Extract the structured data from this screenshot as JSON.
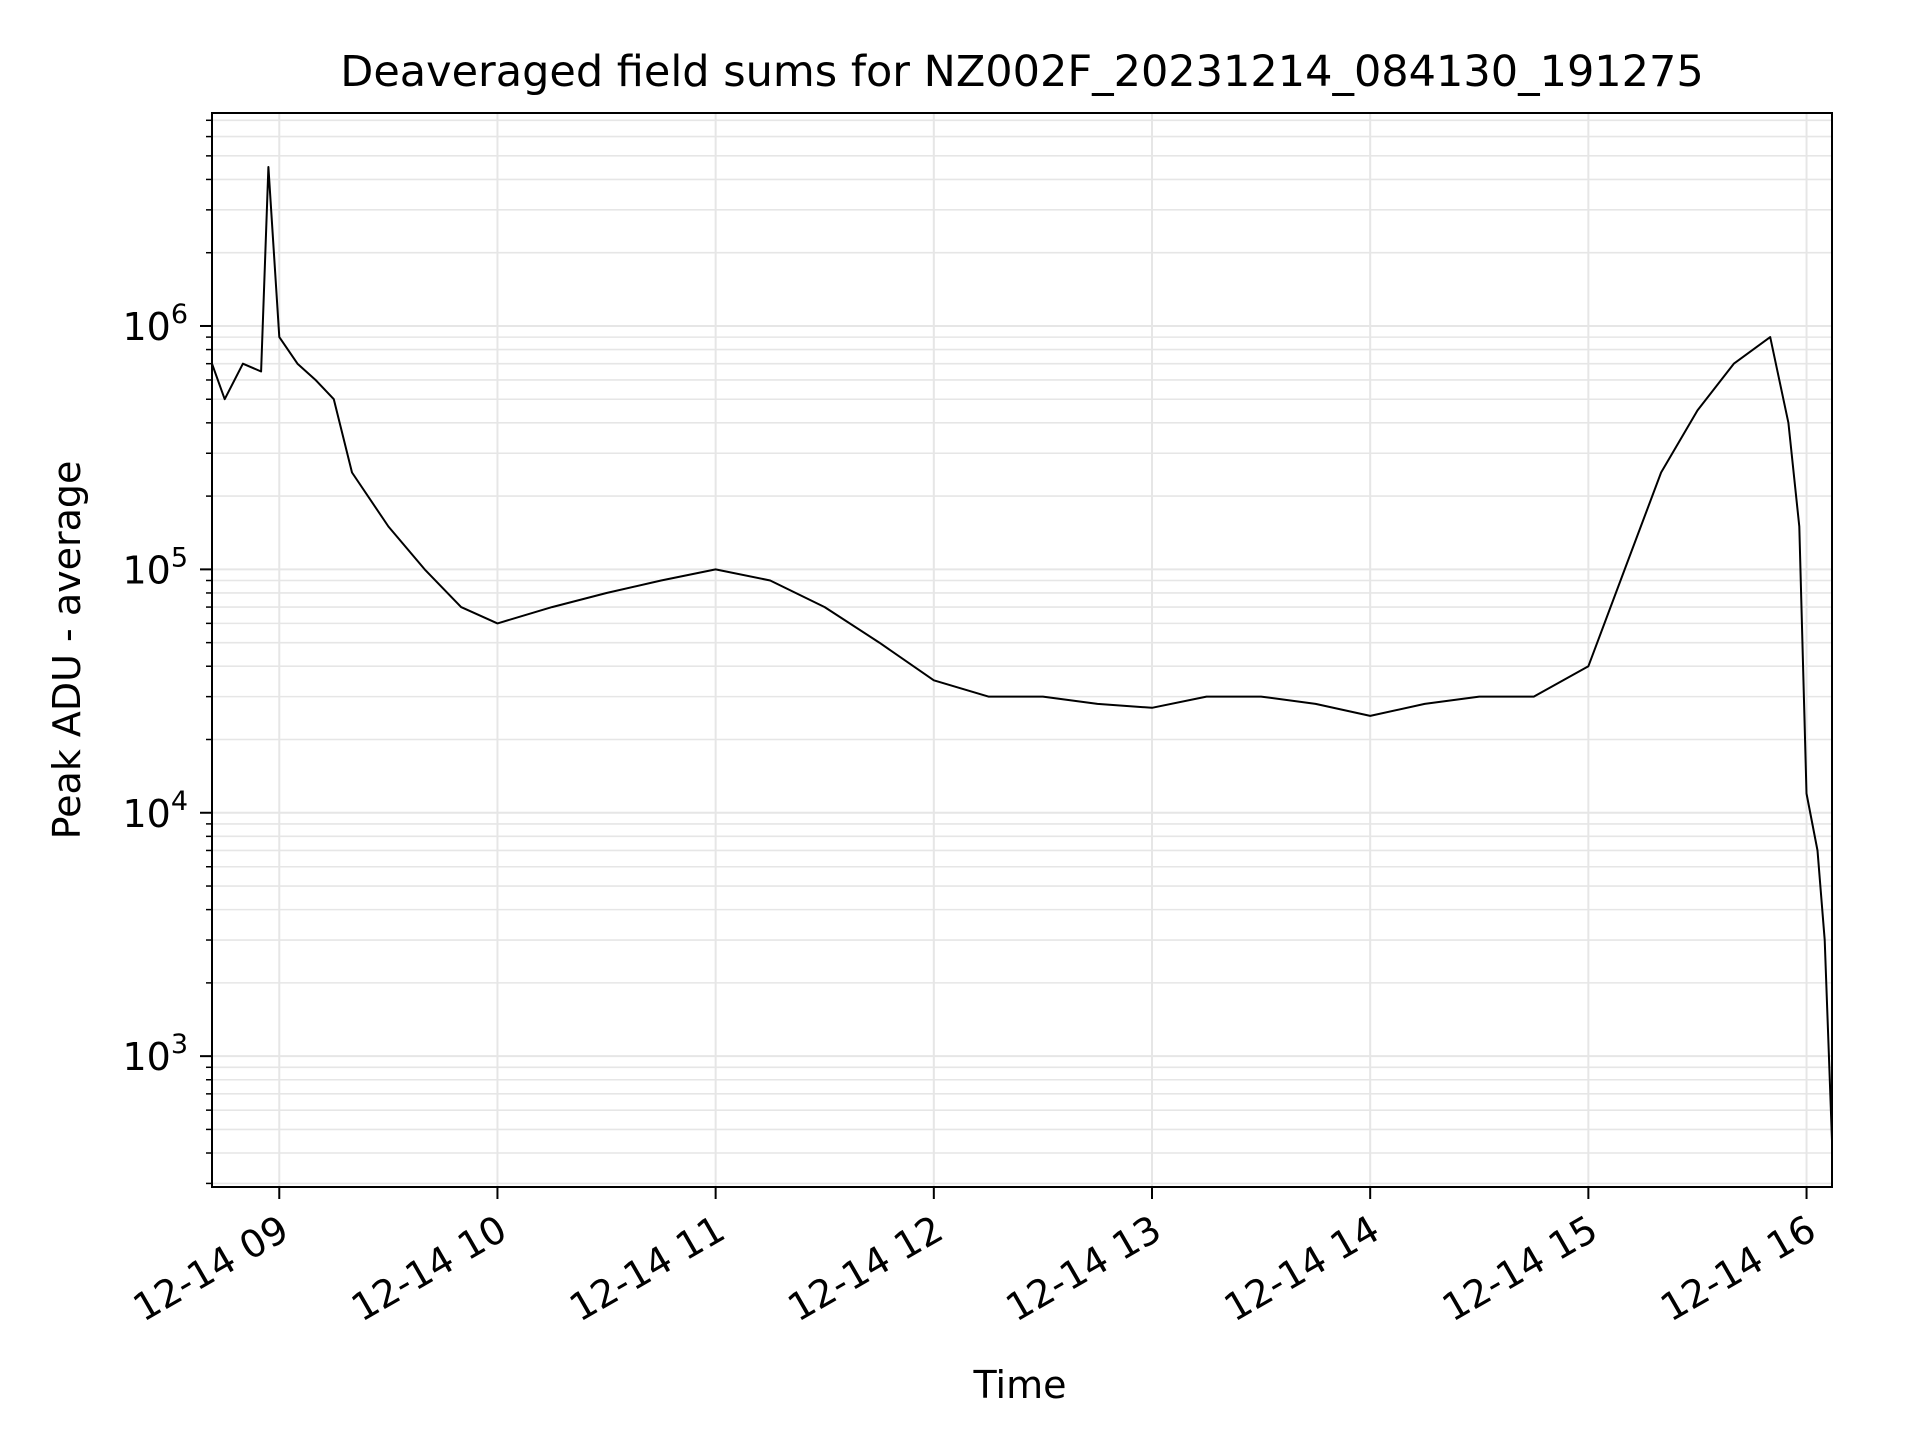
{
  "chart_data": {
    "type": "line",
    "title": "Deaveraged field sums for NZ002F_20231214_084130_191275",
    "xlabel": "Time",
    "ylabel": "Peak ADU - average",
    "yscale": "log",
    "ylim": [
      290,
      7500000
    ],
    "xlim": [
      "2023-12-14 08:41:30",
      "2023-12-14 16:07:00"
    ],
    "grid": true,
    "line_color": "#000000",
    "x_ticks": [
      {
        "time": "2023-12-14 09:00",
        "label": "12-14 09"
      },
      {
        "time": "2023-12-14 10:00",
        "label": "12-14 10"
      },
      {
        "time": "2023-12-14 11:00",
        "label": "12-14 11"
      },
      {
        "time": "2023-12-14 12:00",
        "label": "12-14 12"
      },
      {
        "time": "2023-12-14 13:00",
        "label": "12-14 13"
      },
      {
        "time": "2023-12-14 14:00",
        "label": "12-14 14"
      },
      {
        "time": "2023-12-14 15:00",
        "label": "12-14 15"
      },
      {
        "time": "2023-12-14 16:00",
        "label": "12-14 16"
      }
    ],
    "y_ticks": [
      {
        "value": 1000,
        "base": "10",
        "exp": "3"
      },
      {
        "value": 10000,
        "base": "10",
        "exp": "4"
      },
      {
        "value": 100000,
        "base": "10",
        "exp": "5"
      },
      {
        "value": 1000000,
        "base": "10",
        "exp": "6"
      }
    ],
    "series": [
      {
        "x": [
          "2023-12-14 08:41:30",
          "2023-12-14 08:45",
          "2023-12-14 08:50",
          "2023-12-14 08:55",
          "2023-12-14 08:57",
          "2023-12-14 09:00",
          "2023-12-14 09:05",
          "2023-12-14 09:10",
          "2023-12-14 09:15",
          "2023-12-14 09:20",
          "2023-12-14 09:30",
          "2023-12-14 09:40",
          "2023-12-14 09:50",
          "2023-12-14 10:00",
          "2023-12-14 10:15",
          "2023-12-14 10:30",
          "2023-12-14 10:45",
          "2023-12-14 11:00",
          "2023-12-14 11:15",
          "2023-12-14 11:30",
          "2023-12-14 11:45",
          "2023-12-14 12:00",
          "2023-12-14 12:15",
          "2023-12-14 12:30",
          "2023-12-14 12:45",
          "2023-12-14 13:00",
          "2023-12-14 13:15",
          "2023-12-14 13:30",
          "2023-12-14 13:45",
          "2023-12-14 14:00",
          "2023-12-14 14:15",
          "2023-12-14 14:30",
          "2023-12-14 14:45",
          "2023-12-14 15:00",
          "2023-12-14 15:10",
          "2023-12-14 15:20",
          "2023-12-14 15:30",
          "2023-12-14 15:40",
          "2023-12-14 15:50",
          "2023-12-14 15:55",
          "2023-12-14 15:58",
          "2023-12-14 16:00",
          "2023-12-14 16:03",
          "2023-12-14 16:05",
          "2023-12-14 16:07"
        ],
        "y": [
          700000,
          500000,
          700000,
          650000,
          4500000,
          900000,
          700000,
          600000,
          500000,
          250000,
          150000,
          100000,
          70000,
          60000,
          70000,
          80000,
          90000,
          100000,
          90000,
          70000,
          50000,
          35000,
          30000,
          30000,
          28000,
          27000,
          30000,
          30000,
          28000,
          25000,
          28000,
          30000,
          30000,
          40000,
          100000,
          250000,
          450000,
          700000,
          900000,
          400000,
          150000,
          12000,
          7000,
          3000,
          450
        ]
      }
    ]
  }
}
